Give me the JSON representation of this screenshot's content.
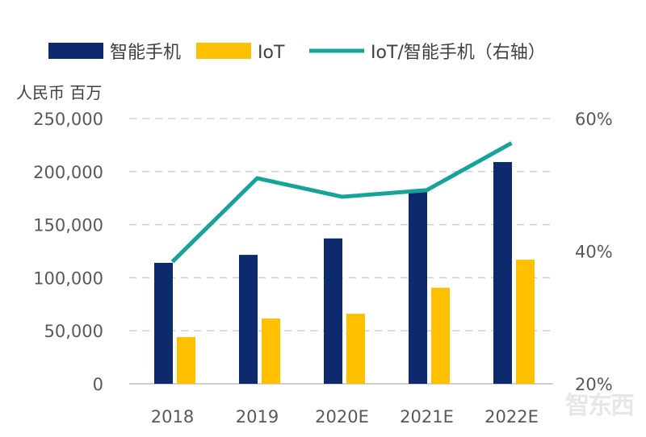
{
  "chart_data": {
    "type": "bar",
    "categories": [
      "2018",
      "2019",
      "2020E",
      "2021E",
      "2022E"
    ],
    "series": [
      {
        "name": "智能手机",
        "kind": "bar",
        "axis": "left",
        "color": "#0D2A6E",
        "values": [
          114000,
          121500,
          137000,
          181000,
          209000
        ]
      },
      {
        "name": "IoT",
        "kind": "bar",
        "axis": "left",
        "color": "#FFC000",
        "values": [
          44000,
          61500,
          66000,
          90500,
          117000
        ]
      },
      {
        "name": "IoT/智能手机（右轴）",
        "kind": "line",
        "axis": "right",
        "color": "#16A39A",
        "values": [
          38.4,
          51.0,
          48.2,
          49.2,
          56.3
        ]
      }
    ],
    "ylabel": "人民币 百万",
    "ylim": [
      0,
      250000
    ],
    "yticks": [
      "0",
      "50,000",
      "100,000",
      "150,000",
      "200,000",
      "250,000"
    ],
    "y2lim": [
      20,
      60
    ],
    "y2ticks": [
      "20%",
      "40%",
      "60%"
    ],
    "grid": true,
    "legend_position": "top"
  },
  "watermark": "智东西"
}
